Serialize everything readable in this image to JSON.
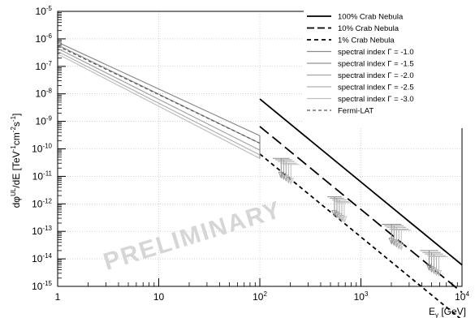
{
  "chart_data": {
    "type": "line",
    "x_scale": "log",
    "y_scale": "log",
    "xlim": [
      1,
      10000
    ],
    "ylim": [
      1e-15,
      1e-05
    ],
    "ylabel_parts": {
      "a": "d",
      "b": "φ",
      "c": "UL",
      "d": "/dE [TeV",
      "e": "-1",
      "f": "cm",
      "g": "-2",
      "h": "s",
      "i": "-1",
      "j": "]"
    },
    "xlabel_parts": {
      "a": "E",
      "b": "γ",
      "c": " [GeV]"
    },
    "x_ticks": [
      {
        "value": 1,
        "base": "1",
        "exp": ""
      },
      {
        "value": 10,
        "base": "10",
        "exp": ""
      },
      {
        "value": 100,
        "base": "10",
        "exp": "2"
      },
      {
        "value": 1000,
        "base": "10",
        "exp": "3"
      },
      {
        "value": 10000,
        "base": "10",
        "exp": "4"
      }
    ],
    "y_ticks": [
      {
        "value": 1e-05,
        "exp": "-5"
      },
      {
        "value": 1e-06,
        "exp": "-6"
      },
      {
        "value": 1e-07,
        "exp": "-7"
      },
      {
        "value": 1e-08,
        "exp": "-8"
      },
      {
        "value": 1e-09,
        "exp": "-9"
      },
      {
        "value": 1e-10,
        "exp": "-10"
      },
      {
        "value": 1e-11,
        "exp": "-11"
      },
      {
        "value": 1e-12,
        "exp": "-12"
      },
      {
        "value": 1e-13,
        "exp": "-13"
      },
      {
        "value": 1e-14,
        "exp": "-14"
      },
      {
        "value": 1e-15,
        "exp": "-15"
      }
    ],
    "grid": true,
    "legend_position": "top-right",
    "watermark": "PRELIMINARY",
    "series": [
      {
        "name": "100% Crab Nebula",
        "style": "solid",
        "color": "#000000",
        "x": [
          100,
          10000
        ],
        "y": [
          6.5e-09,
          6e-15
        ]
      },
      {
        "name": "10% Crab Nebula",
        "style": "longdash",
        "color": "#000000",
        "x": [
          100,
          10000
        ],
        "y": [
          6.5e-10,
          6e-16
        ]
      },
      {
        "name": "1% Crab Nebula",
        "style": "shortdash",
        "color": "#000000",
        "x": [
          100,
          10000
        ],
        "y": [
          6.5e-11,
          6e-17
        ]
      },
      {
        "name": "spectral index Γ = -1.0",
        "style": "solid",
        "color": "#8a8a8a",
        "x": [
          1,
          100
        ],
        "y": [
          7.5e-07,
          3e-10
        ]
      },
      {
        "name": "spectral index Γ = -1.5",
        "style": "solid",
        "color": "#959595",
        "x": [
          1,
          100
        ],
        "y": [
          6e-07,
          1.6e-10
        ]
      },
      {
        "name": "spectral index Γ = -2.0",
        "style": "solid",
        "color": "#a2a2a2",
        "x": [
          1,
          100
        ],
        "y": [
          4.5e-07,
          9e-11
        ]
      },
      {
        "name": "spectral index Γ = -2.5",
        "style": "solid",
        "color": "#b0b0b0",
        "x": [
          1,
          100
        ],
        "y": [
          3.5e-07,
          6e-11
        ]
      },
      {
        "name": "spectral index Γ = -3.0",
        "style": "solid",
        "color": "#bfbfbf",
        "x": [
          1,
          100
        ],
        "y": [
          2.8e-07,
          4.5e-11
        ]
      },
      {
        "name": "Fermi-LAT",
        "style": "dashed",
        "color": "#555555",
        "x": [
          1,
          100
        ],
        "y": [
          5.5e-07,
          1.6e-10
        ]
      }
    ],
    "upper_limit_groups": [
      {
        "e_min": 150,
        "e_max": 220,
        "ul": [
          4.5e-11,
          4e-11,
          3.5e-11,
          3e-11,
          2.7e-11
        ]
      },
      {
        "e_min": 520,
        "e_max": 720,
        "ul": [
          1.8e-12,
          1.6e-12,
          1.4e-12,
          1.2e-12,
          1.1e-12
        ]
      },
      {
        "e_min": 1800,
        "e_max": 2800,
        "ul": [
          1.8e-13,
          1.6e-13,
          1.4e-13,
          1.2e-13,
          1.1e-13
        ]
      },
      {
        "e_min": 4300,
        "e_max": 6500,
        "ul": [
          2e-14,
          1.7e-14,
          1.5e-14,
          1.3e-14,
          1.2e-14
        ]
      }
    ],
    "ul_colors": [
      "#8a8a8a",
      "#959595",
      "#a2a2a2",
      "#b0b0b0",
      "#bfbfbf"
    ]
  }
}
